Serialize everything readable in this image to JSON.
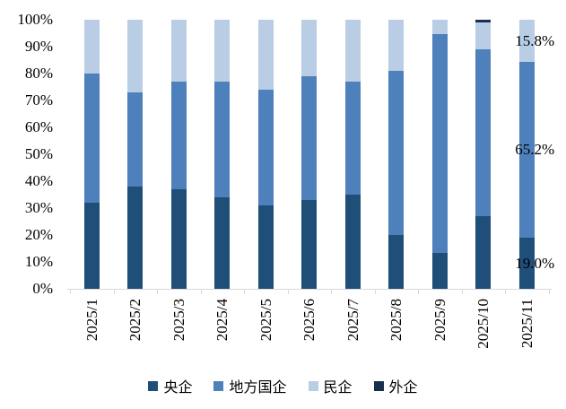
{
  "chart_data": {
    "type": "bar",
    "stacked": true,
    "title": "",
    "xlabel": "",
    "ylabel": "",
    "grid": false,
    "legend_position": "bottom",
    "categories": [
      "2025/1",
      "2025/2",
      "2025/3",
      "2025/4",
      "2025/5",
      "2025/6",
      "2025/7",
      "2025/8",
      "2025/9",
      "2025/10",
      "2025/11"
    ],
    "series": [
      {
        "name": "央企",
        "color": "#1f4e79",
        "values": [
          32,
          38,
          37,
          34,
          31,
          33,
          35,
          20,
          13.4,
          27,
          19.0
        ]
      },
      {
        "name": "地方国企",
        "color": "#4e80bc",
        "values": [
          48,
          35,
          40,
          43,
          43,
          46,
          42,
          61,
          81.2,
          62,
          65.2
        ]
      },
      {
        "name": "民企",
        "color": "#b9cde4",
        "values": [
          20,
          27,
          23,
          23,
          26,
          21,
          23,
          19,
          5.4,
          10,
          15.8
        ]
      },
      {
        "name": "外企",
        "color": "#17304f",
        "values": [
          0,
          0,
          0,
          0,
          0,
          0,
          0,
          0,
          0,
          1,
          0
        ]
      }
    ],
    "y_axis": {
      "min": 0,
      "max": 100,
      "tick_labels": [
        "0%",
        "10%",
        "20%",
        "30%",
        "40%",
        "50%",
        "60%",
        "70%",
        "80%",
        "90%",
        "100%"
      ]
    },
    "annotations": [
      {
        "text": "15.8%",
        "series": "民企"
      },
      {
        "text": "65.2%",
        "series": "地方国企"
      },
      {
        "text": "19.0%",
        "series": "央企"
      }
    ],
    "axis_color": "#d9d9d9",
    "text_color": "#000000"
  }
}
